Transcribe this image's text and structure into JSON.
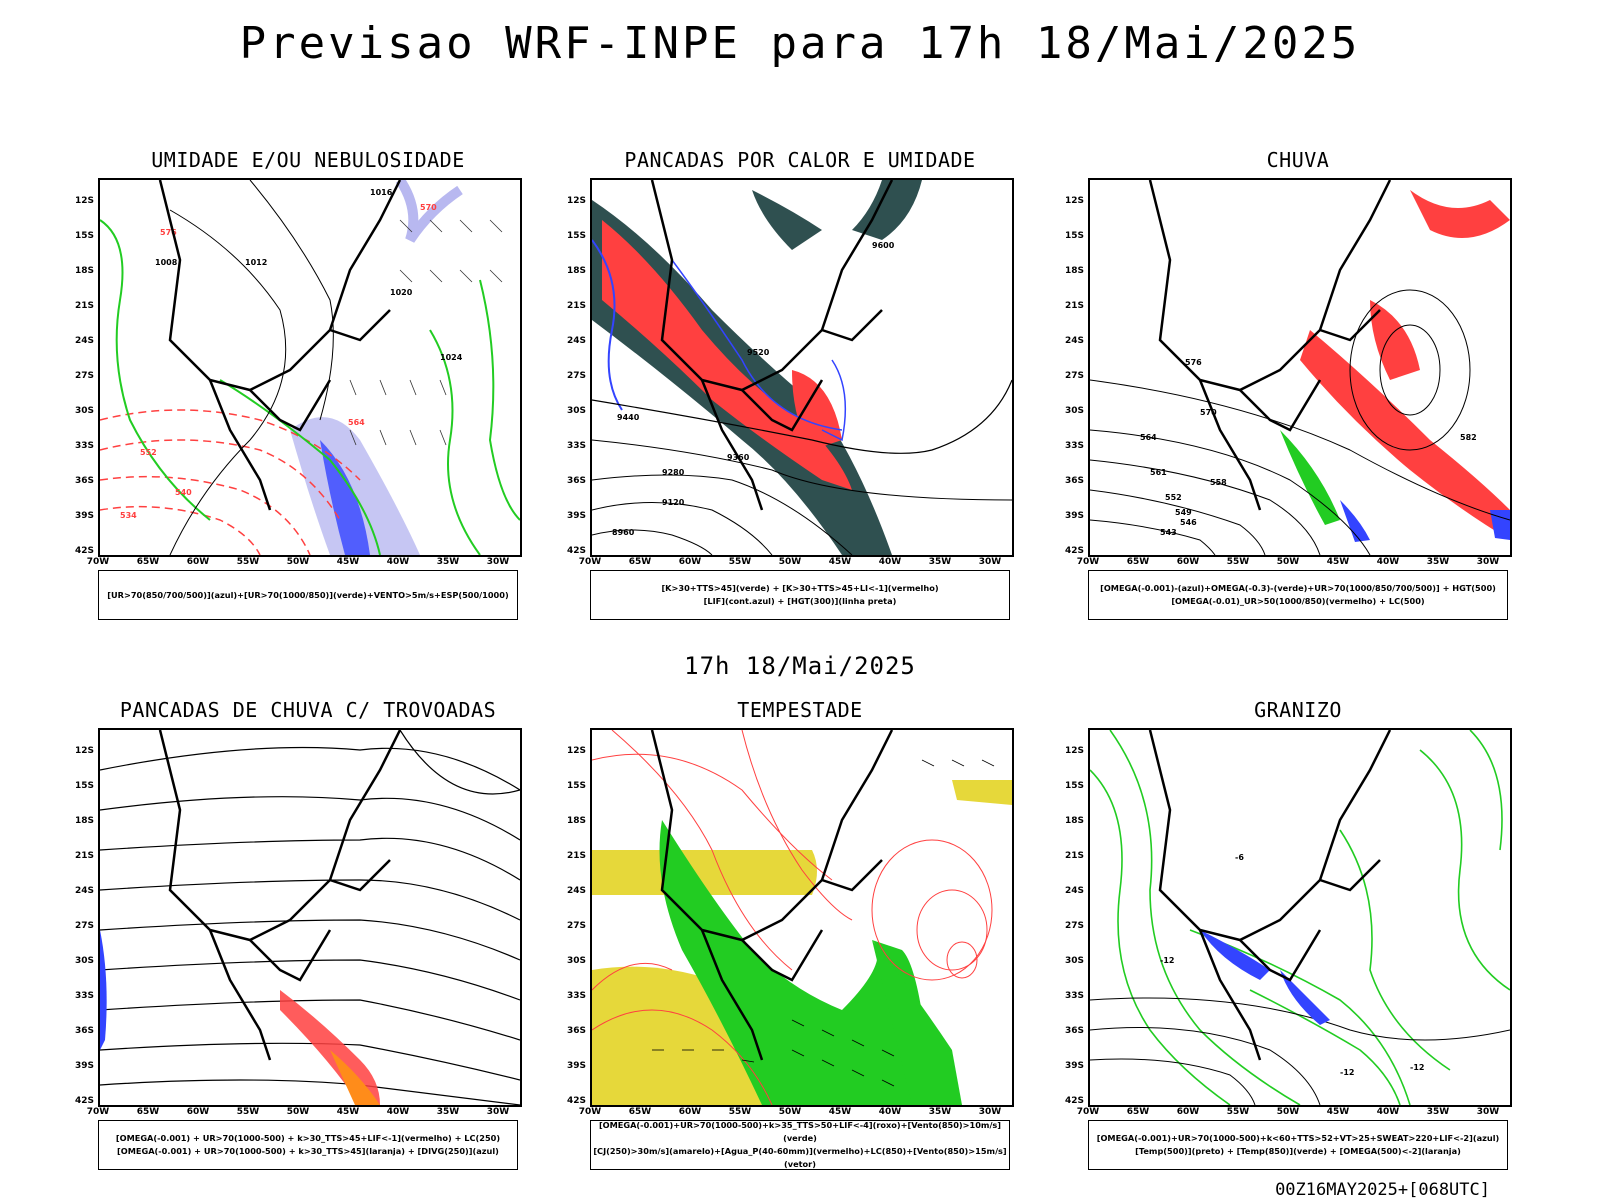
{
  "title": "Previsao WRF-INPE  para 17h 18/Mai/2025",
  "subtitle": "17h 18/Mai/2025",
  "footer": "00Z16MAY2025+[068UTC]",
  "lat_labels": [
    "12S",
    "15S",
    "18S",
    "21S",
    "24S",
    "27S",
    "30S",
    "33S",
    "36S",
    "39S",
    "42S"
  ],
  "lon_labels": [
    "70W",
    "65W",
    "60W",
    "55W",
    "50W",
    "45W",
    "40W",
    "35W",
    "30W"
  ],
  "colors": {
    "red": "#ff4040",
    "green": "#22cc22",
    "blue": "#3344ff",
    "lavender": "#b8b8f0",
    "darkteal": "#2f5050",
    "yellow": "#e6d83a",
    "orange": "#ff8c1a"
  },
  "panels": [
    {
      "title": "UMIDADE E/OU NEBULOSIDADE",
      "legend": [
        "[UR>70(850/700/500)](azul)+[UR>70(1000/850)](verde)+VENTO>5m/s+ESP(500/1000)"
      ]
    },
    {
      "title": "PANCADAS POR CALOR E UMIDADE",
      "legend": [
        "[K>30+TTS>45](verde)  +  [K>30+TTS>45+LI<-1](vermelho)",
        "[LIF](cont.azul)  +  [HGT(300)](linha preta)"
      ]
    },
    {
      "title": "CHUVA",
      "legend": [
        "[OMEGA(-0.001)-(azul)+OMEGA(-0.3)-(verde)+UR>70(1000/850/700/500)]  +  HGT(500)",
        "[OMEGA(-0.01)_UR>50(1000/850)(vermelho)  +  LC(500)"
      ]
    },
    {
      "title": "PANCADAS DE CHUVA C/ TROVOADAS",
      "legend": [
        "[OMEGA(-0.001)  +  UR>70(1000-500)  +  k>30_TTS>45+LIF<-1](vermelho)  +  LC(250)",
        "[OMEGA(-0.001)  +  UR>70(1000-500)  +  k>30_TTS>45](laranja)  +  [DIVG(250)](azul)"
      ]
    },
    {
      "title": "TEMPESTADE",
      "legend": [
        "[OMEGA(-0.001)+UR>70(1000-500)+k>35_TTS>50+LIF<-4](roxo)+[Vento(850)>10m/s](verde)",
        "[CJ(250)>30m/s](amarelo)+[Agua_P(40-60mm)](vermelho)+LC(850)+[Vento(850)>15m/s](vetor)"
      ]
    },
    {
      "title": "GRANIZO",
      "legend": [
        "[OMEGA(-0.001)+UR>70(1000-500)+k<60+TTS>52+VT>25+SWEAT>220+LIF<-2](azul)",
        "[Temp(500)](preto)  +  [Temp(850)](verde)  +  [OMEGA(500)<-2](laranja)"
      ]
    }
  ],
  "contour_labels": {
    "p1": [
      "1016",
      "1012",
      "1020",
      "1024",
      "576",
      "570",
      "564",
      "552",
      "540",
      "534",
      "1008"
    ],
    "p2": [
      "9600",
      "9520",
      "9440",
      "9360",
      "9280",
      "9120",
      "8960"
    ],
    "p3": [
      "576",
      "570",
      "564",
      "561",
      "558",
      "552",
      "549",
      "546",
      "543",
      "582"
    ],
    "p6": [
      "-12",
      "-6"
    ]
  }
}
